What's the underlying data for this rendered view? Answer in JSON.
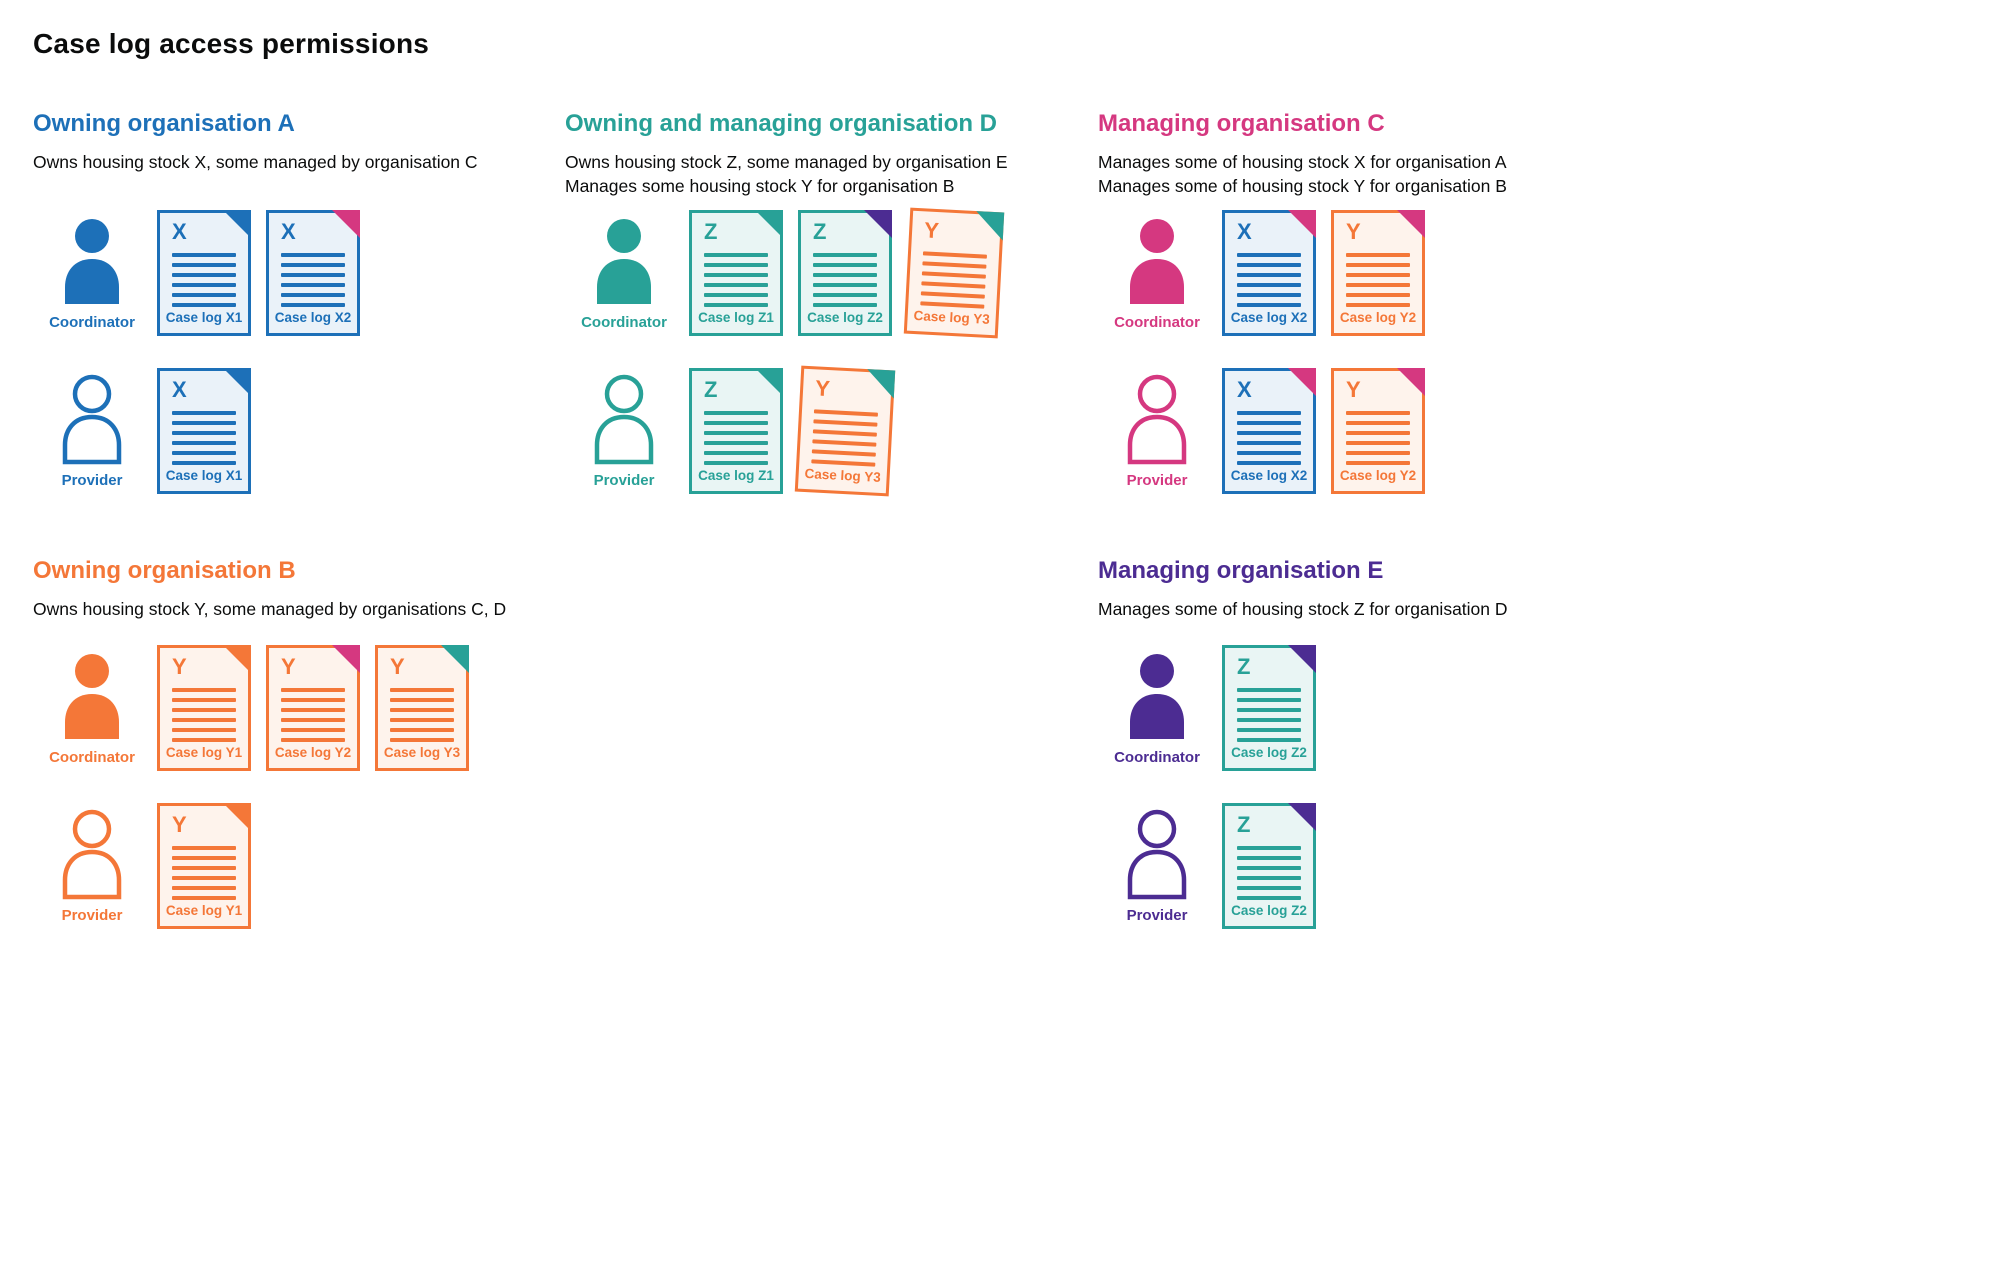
{
  "page": {
    "title": "Case log access permissions"
  },
  "palette": {
    "blue": {
      "main": "#1d70b8",
      "light": "#eaf2f9"
    },
    "teal": {
      "main": "#28a197",
      "light": "#e9f5f4"
    },
    "orange": {
      "main": "#f47738",
      "light": "#fef3ec"
    },
    "pink": {
      "main": "#d53880",
      "light": "#fbebf2"
    },
    "purple": {
      "main": "#4c2c92",
      "light": "#ece8f4"
    }
  },
  "sections": [
    {
      "id": "org-a",
      "color": "blue",
      "heading": "Owning organisation A",
      "description": [
        "Owns housing stock X, some managed by organisation C"
      ],
      "rows": [
        {
          "role": "Coordinator",
          "person": "filled",
          "docs": [
            {
              "letter": "X",
              "label": "Case log X1",
              "color": "blue",
              "fold": "blue"
            },
            {
              "letter": "X",
              "label": "Case log X2",
              "color": "blue",
              "fold": "pink"
            }
          ]
        },
        {
          "role": "Provider",
          "person": "outline",
          "docs": [
            {
              "letter": "X",
              "label": "Case log X1",
              "color": "blue",
              "fold": "blue"
            }
          ]
        }
      ]
    },
    {
      "id": "org-d",
      "color": "teal",
      "heading": "Owning and managing organisation D",
      "description": [
        "Owns housing stock Z, some managed by organisation E",
        "Manages some housing stock Y for organisation B"
      ],
      "rows": [
        {
          "role": "Coordinator",
          "person": "filled",
          "docs": [
            {
              "letter": "Z",
              "label": "Case log Z1",
              "color": "teal",
              "fold": "teal"
            },
            {
              "letter": "Z",
              "label": "Case log Z2",
              "color": "teal",
              "fold": "purple"
            },
            {
              "letter": "Y",
              "label": "Case log Y3",
              "color": "orange",
              "fold": "teal",
              "tilted": true
            }
          ]
        },
        {
          "role": "Provider",
          "person": "outline",
          "docs": [
            {
              "letter": "Z",
              "label": "Case log Z1",
              "color": "teal",
              "fold": "teal"
            },
            {
              "letter": "Y",
              "label": "Case log Y3",
              "color": "orange",
              "fold": "teal",
              "tilted": true
            }
          ]
        }
      ]
    },
    {
      "id": "org-c",
      "color": "pink",
      "heading": "Managing organisation C",
      "description": [
        "Manages some of housing stock X for organisation A",
        "Manages some of housing stock Y for organisation B"
      ],
      "rows": [
        {
          "role": "Coordinator",
          "person": "filled",
          "docs": [
            {
              "letter": "X",
              "label": "Case log X2",
              "color": "blue",
              "fold": "pink"
            },
            {
              "letter": "Y",
              "label": "Case log Y2",
              "color": "orange",
              "fold": "pink"
            }
          ]
        },
        {
          "role": "Provider",
          "person": "outline",
          "docs": [
            {
              "letter": "X",
              "label": "Case log X2",
              "color": "blue",
              "fold": "pink"
            },
            {
              "letter": "Y",
              "label": "Case log Y2",
              "color": "orange",
              "fold": "pink"
            }
          ]
        }
      ]
    },
    {
      "id": "org-b",
      "color": "orange",
      "heading": "Owning organisation B",
      "description": [
        "Owns housing stock Y, some managed by organisations C, D"
      ],
      "rows": [
        {
          "role": "Coordinator",
          "person": "filled",
          "docs": [
            {
              "letter": "Y",
              "label": "Case log Y1",
              "color": "orange",
              "fold": "orange"
            },
            {
              "letter": "Y",
              "label": "Case log Y2",
              "color": "orange",
              "fold": "pink"
            },
            {
              "letter": "Y",
              "label": "Case log Y3",
              "color": "orange",
              "fold": "teal"
            }
          ]
        },
        {
          "role": "Provider",
          "person": "outline",
          "docs": [
            {
              "letter": "Y",
              "label": "Case log Y1",
              "color": "orange",
              "fold": "orange"
            }
          ]
        }
      ]
    },
    {
      "id": "org-e",
      "color": "purple",
      "heading": "Managing organisation E",
      "description": [
        "Manages some of housing stock Z for organisation D"
      ],
      "rows": [
        {
          "role": "Coordinator",
          "person": "filled",
          "docs": [
            {
              "letter": "Z",
              "label": "Case log Z2",
              "color": "teal",
              "fold": "purple"
            }
          ]
        },
        {
          "role": "Provider",
          "person": "outline",
          "docs": [
            {
              "letter": "Z",
              "label": "Case log Z2",
              "color": "teal",
              "fold": "purple"
            }
          ]
        }
      ]
    }
  ]
}
